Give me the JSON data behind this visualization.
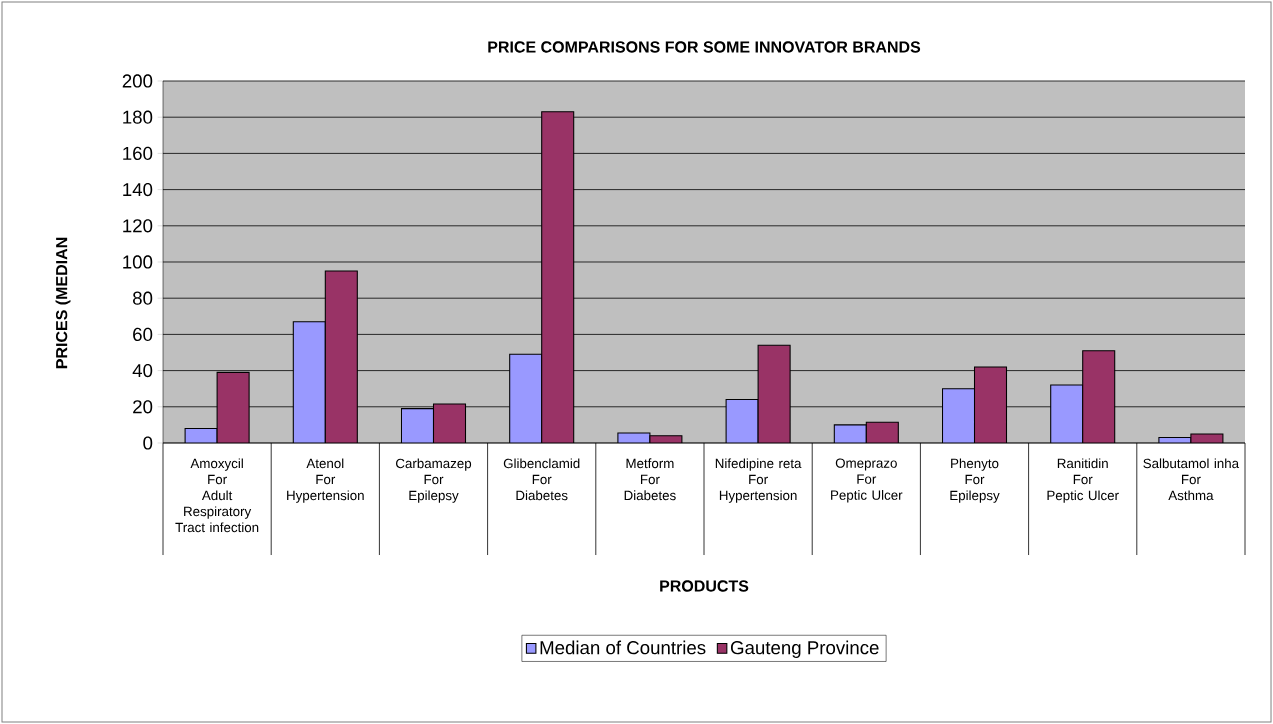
{
  "chart_data": {
    "type": "bar",
    "title": "PRICE COMPARISONS FOR SOME INNOVATOR BRANDS",
    "xlabel": "PRODUCTS",
    "ylabel": "PRICES (MEDIAN",
    "categories": [
      "Amoxycil\nFor\nAdult\nRespiratory\nTract infection",
      "Atenol\nFor\nHypertension",
      "Carbamazep\nFor\nEpilepsy",
      "Glibenclamid\nFor\nDiabetes",
      "Metform\nFor\nDiabetes",
      "Nifedipine reta\nFor\nHypertension",
      "Omeprazo\nFor\nPeptic Ulcer",
      "Phenyto\nFor\nEpilepsy",
      "Ranitidin\nFor\nPeptic Ulcer",
      "Salbutamol inha\nFor\nAsthma"
    ],
    "series": [
      {
        "name": "Median of  Countries",
        "color": "#9999ff",
        "values": [
          8,
          67,
          19,
          49,
          5.5,
          24,
          10,
          30,
          32,
          3
        ]
      },
      {
        "name": "Gauteng Province",
        "color": "#993366",
        "values": [
          39,
          95,
          21.5,
          183,
          4,
          54,
          11.5,
          42,
          51,
          5
        ]
      }
    ],
    "ylim": [
      0,
      200
    ],
    "yticks": [
      0,
      20,
      40,
      60,
      80,
      100,
      120,
      140,
      160,
      180,
      200
    ],
    "grid": "y",
    "legend": "bottom"
  }
}
